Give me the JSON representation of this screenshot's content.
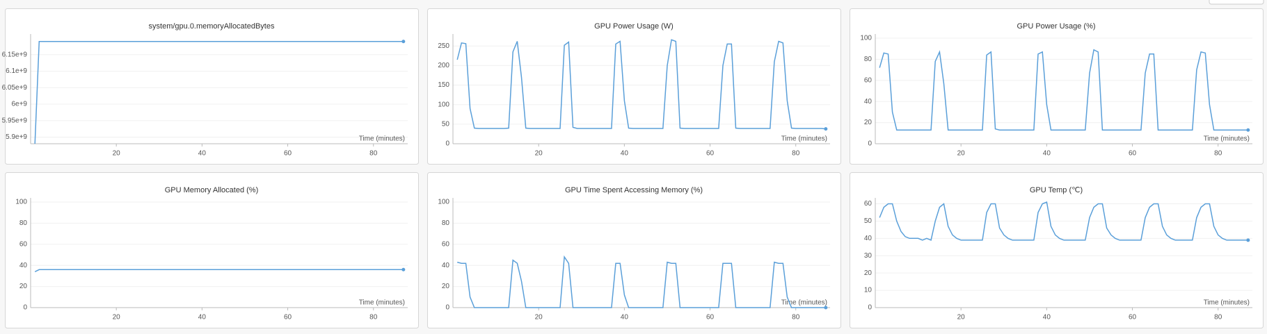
{
  "chart_data": [
    {
      "type": "line",
      "title": "system/gpu.0.memoryAllocatedBytes",
      "xlabel": "Time (minutes)",
      "color": "#5a9fd9",
      "xlim": [
        0,
        88
      ],
      "xticks": [
        20,
        40,
        60,
        80
      ],
      "ylim": [
        5880000000,
        6200000000
      ],
      "yticks": [
        {
          "value": 5900000000,
          "label": "5.9e+9"
        },
        {
          "value": 5950000000,
          "label": "5.95e+9"
        },
        {
          "value": 6000000000,
          "label": "6e+9"
        },
        {
          "value": 6050000000,
          "label": "6.05e+9"
        },
        {
          "value": 6100000000,
          "label": "6.1e+9"
        },
        {
          "value": 6150000000,
          "label": "6.15e+9"
        }
      ],
      "x": [
        1,
        2,
        3,
        4,
        5,
        6,
        7,
        8,
        9,
        10,
        11,
        12,
        13,
        14,
        15,
        16,
        17,
        18,
        19,
        20,
        21,
        22,
        23,
        24,
        25,
        26,
        27,
        28,
        29,
        30,
        31,
        32,
        33,
        34,
        35,
        36,
        37,
        38,
        39,
        40,
        41,
        42,
        43,
        44,
        45,
        46,
        47,
        48,
        49,
        50,
        51,
        52,
        53,
        54,
        55,
        56,
        57,
        58,
        59,
        60,
        61,
        62,
        63,
        64,
        65,
        66,
        67,
        68,
        69,
        70,
        71,
        72,
        73,
        74,
        75,
        76,
        77,
        78,
        79,
        80,
        81,
        82,
        83,
        84,
        85,
        86,
        87
      ],
      "values": [
        5880000000,
        6190000000,
        6190000000,
        6190000000,
        6190000000,
        6190000000,
        6190000000,
        6190000000,
        6190000000,
        6190000000,
        6190000000,
        6190000000,
        6190000000,
        6190000000,
        6190000000,
        6190000000,
        6190000000,
        6190000000,
        6190000000,
        6190000000,
        6190000000,
        6190000000,
        6190000000,
        6190000000,
        6190000000,
        6190000000,
        6190000000,
        6190000000,
        6190000000,
        6190000000,
        6190000000,
        6190000000,
        6190000000,
        6190000000,
        6190000000,
        6190000000,
        6190000000,
        6190000000,
        6190000000,
        6190000000,
        6190000000,
        6190000000,
        6190000000,
        6190000000,
        6190000000,
        6190000000,
        6190000000,
        6190000000,
        6190000000,
        6190000000,
        6190000000,
        6190000000,
        6190000000,
        6190000000,
        6190000000,
        6190000000,
        6190000000,
        6190000000,
        6190000000,
        6190000000,
        6190000000,
        6190000000,
        6190000000,
        6190000000,
        6190000000,
        6190000000,
        6190000000,
        6190000000,
        6190000000,
        6190000000,
        6190000000,
        6190000000,
        6190000000,
        6190000000,
        6190000000,
        6190000000,
        6190000000,
        6190000000,
        6190000000,
        6190000000,
        6190000000,
        6190000000,
        6190000000,
        6190000000,
        6190000000,
        6190000000,
        6190000000
      ]
    },
    {
      "type": "line",
      "title": "GPU Power Usage (W)",
      "xlabel": "Time (minutes)",
      "color": "#5a9fd9",
      "xlim": [
        0,
        88
      ],
      "xticks": [
        20,
        40,
        60,
        80
      ],
      "ylim": [
        0,
        270
      ],
      "yticks": [
        0,
        50,
        100,
        150,
        200,
        250
      ],
      "x": [
        1,
        2,
        3,
        4,
        5,
        6,
        7,
        8,
        9,
        10,
        11,
        12,
        13,
        14,
        15,
        16,
        17,
        18,
        19,
        20,
        21,
        22,
        23,
        24,
        25,
        26,
        27,
        28,
        29,
        30,
        31,
        32,
        33,
        34,
        35,
        36,
        37,
        38,
        39,
        40,
        41,
        42,
        43,
        44,
        45,
        46,
        47,
        48,
        49,
        50,
        51,
        52,
        53,
        54,
        55,
        56,
        57,
        58,
        59,
        60,
        61,
        62,
        63,
        64,
        65,
        66,
        67,
        68,
        69,
        70,
        71,
        72,
        73,
        74,
        75,
        76,
        77,
        78,
        79,
        80,
        81,
        82,
        83,
        84,
        85,
        86,
        87
      ],
      "values": [
        215,
        258,
        256,
        90,
        40,
        39,
        39,
        39,
        39,
        39,
        39,
        39,
        40,
        235,
        262,
        170,
        40,
        39,
        39,
        39,
        39,
        39,
        39,
        39,
        39,
        252,
        260,
        42,
        39,
        39,
        39,
        39,
        39,
        39,
        39,
        39,
        39,
        255,
        262,
        110,
        40,
        39,
        39,
        39,
        39,
        39,
        39,
        39,
        39,
        200,
        266,
        262,
        40,
        39,
        39,
        39,
        39,
        39,
        39,
        39,
        39,
        39,
        200,
        255,
        255,
        40,
        39,
        39,
        39,
        39,
        39,
        39,
        39,
        39,
        210,
        262,
        258,
        110,
        40,
        39,
        39,
        39,
        39,
        39,
        39,
        39,
        38
      ]
    },
    {
      "type": "line",
      "title": "GPU Power Usage (%)",
      "xlabel": "Time (minutes)",
      "color": "#5a9fd9",
      "xlim": [
        0,
        88
      ],
      "xticks": [
        20,
        40,
        60,
        80
      ],
      "ylim": [
        0,
        100
      ],
      "yticks": [
        0,
        20,
        40,
        60,
        80,
        100
      ],
      "x": [
        1,
        2,
        3,
        4,
        5,
        6,
        7,
        8,
        9,
        10,
        11,
        12,
        13,
        14,
        15,
        16,
        17,
        18,
        19,
        20,
        21,
        22,
        23,
        24,
        25,
        26,
        27,
        28,
        29,
        30,
        31,
        32,
        33,
        34,
        35,
        36,
        37,
        38,
        39,
        40,
        41,
        42,
        43,
        44,
        45,
        46,
        47,
        48,
        49,
        50,
        51,
        52,
        53,
        54,
        55,
        56,
        57,
        58,
        59,
        60,
        61,
        62,
        63,
        64,
        65,
        66,
        67,
        68,
        69,
        70,
        71,
        72,
        73,
        74,
        75,
        76,
        77,
        78,
        79,
        80,
        81,
        82,
        83,
        84,
        85,
        86,
        87
      ],
      "values": [
        72,
        86,
        85,
        30,
        13,
        13,
        13,
        13,
        13,
        13,
        13,
        13,
        13,
        78,
        87,
        57,
        13,
        13,
        13,
        13,
        13,
        13,
        13,
        13,
        13,
        84,
        87,
        14,
        13,
        13,
        13,
        13,
        13,
        13,
        13,
        13,
        13,
        85,
        87,
        37,
        13,
        13,
        13,
        13,
        13,
        13,
        13,
        13,
        13,
        67,
        89,
        87,
        13,
        13,
        13,
        13,
        13,
        13,
        13,
        13,
        13,
        13,
        67,
        85,
        85,
        13,
        13,
        13,
        13,
        13,
        13,
        13,
        13,
        13,
        70,
        87,
        86,
        37,
        13,
        13,
        13,
        13,
        13,
        13,
        13,
        13,
        13
      ]
    },
    {
      "type": "line",
      "title": "GPU Memory Allocated (%)",
      "xlabel": "Time (minutes)",
      "color": "#5a9fd9",
      "xlim": [
        0,
        88
      ],
      "xticks": [
        20,
        40,
        60,
        80
      ],
      "ylim": [
        0,
        100
      ],
      "yticks": [
        0,
        20,
        40,
        60,
        80,
        100
      ],
      "x": [
        1,
        2,
        3,
        4,
        5,
        6,
        7,
        8,
        9,
        10,
        11,
        12,
        13,
        14,
        15,
        16,
        17,
        18,
        19,
        20,
        21,
        22,
        23,
        24,
        25,
        26,
        27,
        28,
        29,
        30,
        31,
        32,
        33,
        34,
        35,
        36,
        37,
        38,
        39,
        40,
        41,
        42,
        43,
        44,
        45,
        46,
        47,
        48,
        49,
        50,
        51,
        52,
        53,
        54,
        55,
        56,
        57,
        58,
        59,
        60,
        61,
        62,
        63,
        64,
        65,
        66,
        67,
        68,
        69,
        70,
        71,
        72,
        73,
        74,
        75,
        76,
        77,
        78,
        79,
        80,
        81,
        82,
        83,
        84,
        85,
        86,
        87
      ],
      "values": [
        34,
        36,
        36,
        36,
        36,
        36,
        36,
        36,
        36,
        36,
        36,
        36,
        36,
        36,
        36,
        36,
        36,
        36,
        36,
        36,
        36,
        36,
        36,
        36,
        36,
        36,
        36,
        36,
        36,
        36,
        36,
        36,
        36,
        36,
        36,
        36,
        36,
        36,
        36,
        36,
        36,
        36,
        36,
        36,
        36,
        36,
        36,
        36,
        36,
        36,
        36,
        36,
        36,
        36,
        36,
        36,
        36,
        36,
        36,
        36,
        36,
        36,
        36,
        36,
        36,
        36,
        36,
        36,
        36,
        36,
        36,
        36,
        36,
        36,
        36,
        36,
        36,
        36,
        36,
        36,
        36,
        36,
        36,
        36,
        36,
        36,
        36
      ]
    },
    {
      "type": "line",
      "title": "GPU Time Spent Accessing Memory (%)",
      "xlabel": "Time (minutes)",
      "color": "#5a9fd9",
      "xlim": [
        0,
        88
      ],
      "xticks": [
        20,
        40,
        60,
        80
      ],
      "ylim": [
        0,
        100
      ],
      "yticks": [
        0,
        20,
        40,
        60,
        80,
        100
      ],
      "x": [
        1,
        2,
        3,
        4,
        5,
        6,
        7,
        8,
        9,
        10,
        11,
        12,
        13,
        14,
        15,
        16,
        17,
        18,
        19,
        20,
        21,
        22,
        23,
        24,
        25,
        26,
        27,
        28,
        29,
        30,
        31,
        32,
        33,
        34,
        35,
        36,
        37,
        38,
        39,
        40,
        41,
        42,
        43,
        44,
        45,
        46,
        47,
        48,
        49,
        50,
        51,
        52,
        53,
        54,
        55,
        56,
        57,
        58,
        59,
        60,
        61,
        62,
        63,
        64,
        65,
        66,
        67,
        68,
        69,
        70,
        71,
        72,
        73,
        74,
        75,
        76,
        77,
        78,
        79,
        80,
        81,
        82,
        83,
        84,
        85,
        86,
        87
      ],
      "values": [
        43,
        42,
        42,
        10,
        0,
        0,
        0,
        0,
        0,
        0,
        0,
        0,
        0,
        45,
        42,
        25,
        0,
        0,
        0,
        0,
        0,
        0,
        0,
        0,
        0,
        48,
        42,
        0,
        0,
        0,
        0,
        0,
        0,
        0,
        0,
        0,
        0,
        42,
        42,
        12,
        0,
        0,
        0,
        0,
        0,
        0,
        0,
        0,
        0,
        43,
        42,
        42,
        0,
        0,
        0,
        0,
        0,
        0,
        0,
        0,
        0,
        0,
        42,
        42,
        42,
        0,
        0,
        0,
        0,
        0,
        0,
        0,
        0,
        0,
        43,
        42,
        42,
        10,
        0,
        0,
        0,
        0,
        0,
        0,
        0,
        0,
        0
      ]
    },
    {
      "type": "line",
      "title": "GPU Temp (℃)",
      "xlabel": "Time (minutes)",
      "color": "#5a9fd9",
      "xlim": [
        0,
        88
      ],
      "xticks": [
        20,
        40,
        60,
        80
      ],
      "ylim": [
        0,
        61
      ],
      "yticks": [
        0,
        10,
        20,
        30,
        40,
        50,
        60
      ],
      "x": [
        1,
        2,
        3,
        4,
        5,
        6,
        7,
        8,
        9,
        10,
        11,
        12,
        13,
        14,
        15,
        16,
        17,
        18,
        19,
        20,
        21,
        22,
        23,
        24,
        25,
        26,
        27,
        28,
        29,
        30,
        31,
        32,
        33,
        34,
        35,
        36,
        37,
        38,
        39,
        40,
        41,
        42,
        43,
        44,
        45,
        46,
        47,
        48,
        49,
        50,
        51,
        52,
        53,
        54,
        55,
        56,
        57,
        58,
        59,
        60,
        61,
        62,
        63,
        64,
        65,
        66,
        67,
        68,
        69,
        70,
        71,
        72,
        73,
        74,
        75,
        76,
        77,
        78,
        79,
        80,
        81,
        82,
        83,
        84,
        85,
        86,
        87
      ],
      "values": [
        52,
        58,
        60,
        60,
        50,
        44,
        41,
        40,
        40,
        40,
        39,
        40,
        39,
        50,
        58,
        60,
        47,
        42,
        40,
        39,
        39,
        39,
        39,
        39,
        39,
        55,
        60,
        60,
        46,
        42,
        40,
        39,
        39,
        39,
        39,
        39,
        39,
        55,
        60,
        61,
        47,
        42,
        40,
        39,
        39,
        39,
        39,
        39,
        39,
        52,
        58,
        60,
        60,
        46,
        42,
        40,
        39,
        39,
        39,
        39,
        39,
        39,
        52,
        58,
        60,
        60,
        47,
        42,
        40,
        39,
        39,
        39,
        39,
        39,
        52,
        58,
        60,
        60,
        47,
        42,
        40,
        39,
        39,
        39,
        39,
        39,
        39
      ]
    }
  ]
}
